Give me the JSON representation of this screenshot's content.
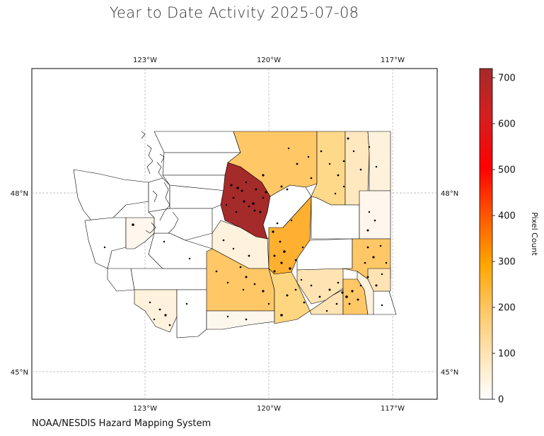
{
  "title": "Year to Date Activity 2025-07-08",
  "credit": "NOAA/NESDIS Hazard Mapping System",
  "axes": {
    "top_ticks": [
      "123°W",
      "120°W",
      "117°W"
    ],
    "bottom_ticks": [
      "123°W",
      "120°W",
      "117°W"
    ],
    "left_ticks": [
      "48°N",
      "45°N"
    ],
    "right_ticks": [
      "48°N",
      "45°N"
    ]
  },
  "colorbar": {
    "label": "Pixel Count",
    "min": 0,
    "max": 720,
    "ticks": [
      "0",
      "100",
      "200",
      "300",
      "400",
      "500",
      "600",
      "700"
    ],
    "tick_values": [
      0,
      100,
      200,
      300,
      400,
      500,
      600,
      700
    ],
    "colormap": [
      "#ffffff",
      "#ffe3b3",
      "#ffc766",
      "#ffa500",
      "#ff5a00",
      "#ff0000",
      "#d71e1e",
      "#a52a2a"
    ]
  },
  "map_style": {
    "background": "#ffffff",
    "border_color": "#000000",
    "grid_color": "#b0b0b0",
    "point_color": "#000000"
  }
}
